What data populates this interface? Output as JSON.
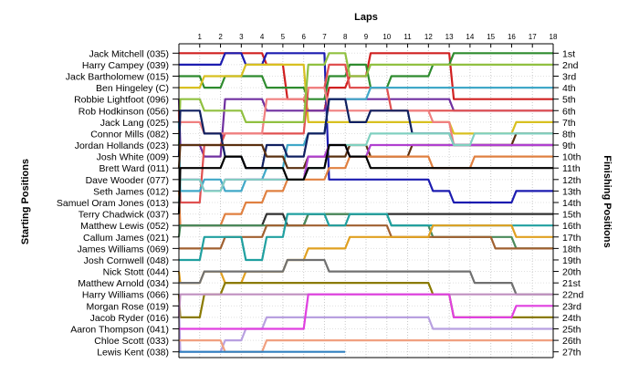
{
  "chart_data": {
    "type": "line",
    "title": "",
    "xlabel": "Laps",
    "ylabel_left": "Starting Positions",
    "ylabel_right": "Finishing Positions",
    "laps": [
      1,
      2,
      3,
      4,
      5,
      6,
      7,
      8,
      9,
      10,
      11,
      12,
      13,
      14,
      15,
      16,
      17,
      18
    ],
    "finishing_labels": [
      "1st",
      "2nd",
      "3rd",
      "4th",
      "5th",
      "6th",
      "7th",
      "8th",
      "9th",
      "10th",
      "11th",
      "12th",
      "13th",
      "14th",
      "15th",
      "16th",
      "17th",
      "18th",
      "19th",
      "20th",
      "21st",
      "22nd",
      "23rd",
      "24th",
      "25th",
      "26th",
      "27th"
    ],
    "grid": true,
    "series": [
      {
        "name": "Jack Mitchell (035)",
        "color": "#d02020",
        "positions": [
          1,
          1,
          1,
          1,
          1,
          2,
          5,
          6,
          4,
          3,
          1,
          1,
          1,
          1,
          5,
          5,
          5,
          5,
          5
        ]
      },
      {
        "name": "Harry Campey (039)",
        "color": "#1c1cb0",
        "positions": [
          2,
          2,
          2,
          1,
          2,
          1,
          1,
          1,
          12,
          12,
          12,
          12,
          12,
          13,
          14,
          14,
          14,
          13,
          13
        ]
      },
      {
        "name": "Jack Bartholomew (015)",
        "color": "#2e8b2e",
        "positions": [
          3,
          3,
          4,
          3,
          3,
          4,
          4,
          5,
          3,
          2,
          4,
          3,
          3,
          2,
          1,
          1,
          1,
          1,
          1
        ]
      },
      {
        "name": "Ben Hingeley (C)",
        "color": "#d8c020",
        "positions": [
          4,
          4,
          3,
          3,
          2,
          2,
          2,
          7,
          7,
          7,
          7,
          7,
          7,
          7,
          8,
          8,
          8,
          7,
          7
        ]
      },
      {
        "name": "Robbie Lightfoot (096)",
        "color": "#7030a0",
        "positions": [
          5,
          9,
          10,
          5,
          5,
          6,
          6,
          6,
          5,
          5,
          5,
          5,
          5,
          5,
          6,
          6,
          6,
          6,
          6
        ]
      },
      {
        "name": "Rob Hodkinson (056)",
        "color": "#e05050",
        "positions": [
          6,
          14,
          9,
          8,
          8,
          8,
          8,
          4,
          2,
          4,
          4,
          6,
          6,
          6,
          6,
          6,
          6,
          6,
          6
        ]
      },
      {
        "name": "Jack Lang (025)",
        "color": "#40a8c8",
        "positions": [
          7,
          13,
          12,
          13,
          12,
          11,
          9,
          8,
          5,
          5,
          4,
          4,
          4,
          4,
          4,
          4,
          4,
          4,
          4
        ]
      },
      {
        "name": "Connor Mills (082)",
        "color": "#f08080",
        "positions": [
          8,
          7,
          8,
          8,
          8,
          5,
          5,
          4,
          6,
          6,
          6,
          6,
          6,
          7,
          9,
          9,
          9,
          9,
          9
        ]
      },
      {
        "name": "Jordan Hollands (023)",
        "color": "#90c040",
        "positions": [
          9,
          5,
          6,
          6,
          7,
          7,
          7,
          2,
          1,
          3,
          2,
          2,
          2,
          2,
          2,
          2,
          2,
          2,
          2
        ]
      },
      {
        "name": "Josh White (009)",
        "color": "#102060",
        "positions": [
          10,
          6,
          8,
          10,
          11,
          9,
          10,
          8,
          5,
          7,
          6,
          6,
          8,
          8,
          9,
          9,
          9,
          9,
          9
        ]
      },
      {
        "name": "Brett Ward (011)",
        "color": "#5a3010",
        "positions": [
          11,
          9,
          9,
          9,
          9,
          10,
          11,
          10,
          10,
          9,
          10,
          10,
          9,
          9,
          9,
          9,
          9,
          8,
          8
        ]
      },
      {
        "name": "Dave Wooder (077)",
        "color": "#b040d0",
        "positions": [
          12,
          12,
          13,
          12,
          12,
          12,
          12,
          10,
          9,
          10,
          9,
          9,
          9,
          9,
          9,
          9,
          9,
          9,
          9
        ]
      },
      {
        "name": "Seth James (012)",
        "color": "#e08040",
        "positions": [
          13,
          16,
          16,
          15,
          14,
          13,
          12,
          12,
          11,
          10,
          10,
          10,
          10,
          11,
          11,
          10,
          10,
          10,
          10
        ]
      },
      {
        "name": "Samuel Oram Jones (013)",
        "color": "#80d0c0",
        "positions": [
          14,
          12,
          13,
          12,
          12,
          12,
          12,
          11,
          9,
          9,
          8,
          8,
          8,
          8,
          9,
          8,
          8,
          8,
          8
        ]
      },
      {
        "name": "Terry Chadwick (037)",
        "color": "#000000",
        "positions": [
          15,
          11,
          11,
          10,
          11,
          11,
          12,
          11,
          9,
          10,
          11,
          11,
          11,
          11,
          11,
          11,
          11,
          11,
          11
        ]
      },
      {
        "name": "Matthew Lewis (052)",
        "color": "#303030",
        "positions": [
          16,
          16,
          16,
          16,
          16,
          15,
          16,
          15,
          15,
          15,
          15,
          15,
          15,
          15,
          15,
          15,
          15,
          15,
          15
        ]
      },
      {
        "name": "Callum James (021)",
        "color": "#4a8a5a",
        "positions": [
          17,
          16,
          16,
          16,
          16,
          16,
          16,
          15,
          15,
          15,
          15,
          16,
          16,
          17,
          17,
          17,
          17,
          18,
          18
        ]
      },
      {
        "name": "James Williams (069)",
        "color": "#a06030",
        "positions": [
          18,
          18,
          18,
          17,
          17,
          16,
          16,
          16,
          16,
          16,
          16,
          17,
          17,
          17,
          17,
          17,
          18,
          18,
          18
        ]
      },
      {
        "name": "Josh Cornwell (048)",
        "color": "#20a0a0",
        "positions": [
          19,
          19,
          17,
          17,
          19,
          17,
          15,
          15,
          16,
          15,
          15,
          16,
          16,
          16,
          16,
          16,
          16,
          16,
          16
        ]
      },
      {
        "name": "Nick Stott (044)",
        "color": "#e0a020",
        "positions": [
          20,
          21,
          20,
          21,
          20,
          20,
          19,
          18,
          18,
          17,
          17,
          17,
          17,
          16,
          16,
          16,
          16,
          17,
          17
        ]
      },
      {
        "name": "Matthew Arnold (034)",
        "color": "#707070",
        "positions": [
          21,
          21,
          20,
          20,
          20,
          20,
          19,
          19,
          20,
          20,
          20,
          20,
          20,
          20,
          20,
          21,
          21,
          22,
          22
        ]
      },
      {
        "name": "Harry Williams (066)",
        "color": "#8a7a00",
        "positions": [
          22,
          24,
          22,
          21,
          21,
          21,
          21,
          21,
          21,
          21,
          21,
          21,
          21,
          22,
          24,
          24,
          24,
          24,
          24
        ]
      },
      {
        "name": "Morgan Rose (019)",
        "color": "#b8a0e0",
        "positions": [
          23,
          27,
          27,
          26,
          25,
          24,
          24,
          24,
          24,
          24,
          24,
          24,
          24,
          25,
          25,
          25,
          25,
          25,
          25
        ]
      },
      {
        "name": "Jacob Ryder (016)",
        "color": "#c090c0",
        "positions": [
          24,
          22,
          22,
          22,
          22,
          22,
          22,
          22,
          22,
          22,
          22,
          22,
          22,
          22,
          22,
          22,
          22,
          22,
          22
        ]
      },
      {
        "name": "Aaron Thompson (041)",
        "color": "#e040e0",
        "positions": [
          25,
          25,
          25,
          25,
          25,
          25,
          25,
          22,
          22,
          22,
          22,
          22,
          22,
          22,
          24,
          24,
          24,
          23,
          23
        ]
      },
      {
        "name": "Chloe Scott (033)",
        "color": "#f0a080",
        "positions": [
          26,
          26,
          26,
          27,
          27,
          26,
          26,
          26,
          26,
          26,
          26,
          26,
          26,
          26,
          26,
          26,
          26,
          26,
          26
        ]
      },
      {
        "name": "Lewis Kent (038)",
        "color": "#3080c0",
        "positions": [
          27,
          27,
          27,
          27,
          27,
          27,
          27,
          27,
          27
        ]
      }
    ]
  }
}
